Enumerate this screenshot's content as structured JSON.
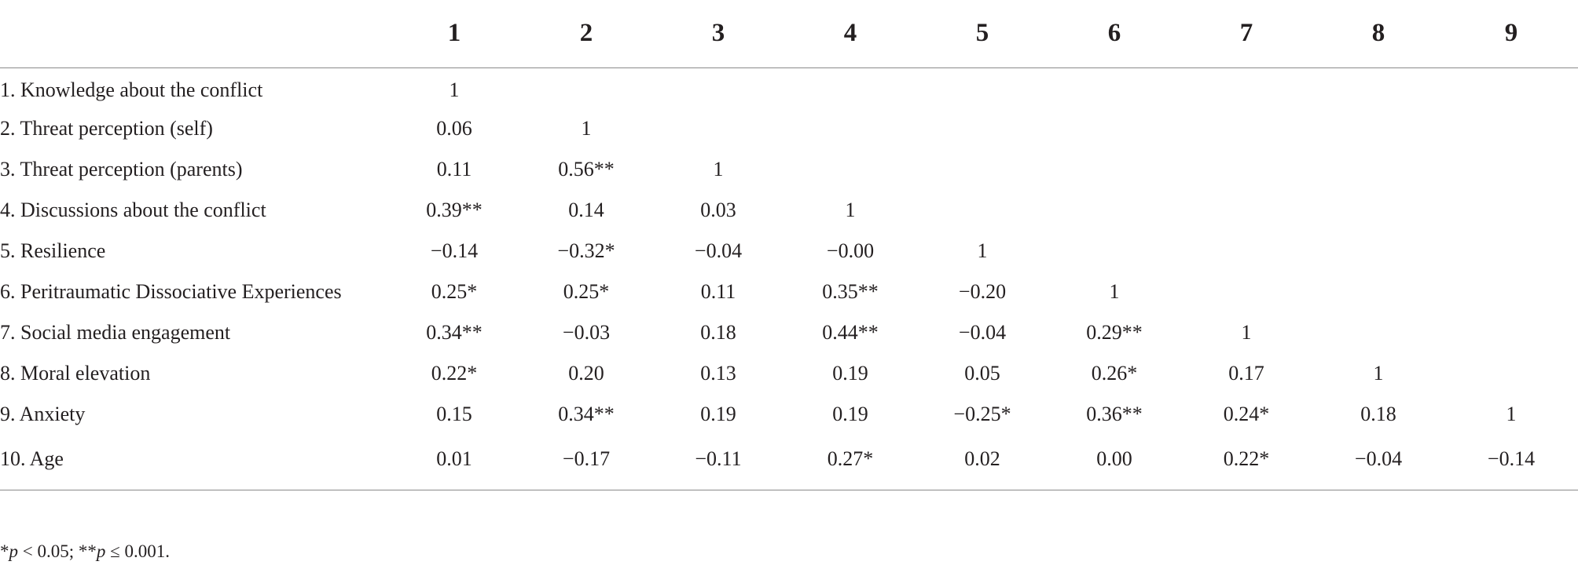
{
  "table": {
    "columns": [
      "1",
      "2",
      "3",
      "4",
      "5",
      "6",
      "7",
      "8",
      "9"
    ],
    "rows": [
      {
        "label": "1. Knowledge about the conflict",
        "values": [
          "1",
          "",
          "",
          "",
          "",
          "",
          "",
          "",
          ""
        ]
      },
      {
        "label": "2. Threat perception (self)",
        "values": [
          "0.06",
          "1",
          "",
          "",
          "",
          "",
          "",
          "",
          ""
        ]
      },
      {
        "label": "3. Threat perception (parents)",
        "values": [
          "0.11",
          "0.56**",
          "1",
          "",
          "",
          "",
          "",
          "",
          ""
        ]
      },
      {
        "label": "4. Discussions about the conflict",
        "values": [
          "0.39**",
          "0.14",
          "0.03",
          "1",
          "",
          "",
          "",
          "",
          ""
        ]
      },
      {
        "label": "5. Resilience",
        "values": [
          "−0.14",
          "−0.32*",
          "−0.04",
          "−0.00",
          "1",
          "",
          "",
          "",
          ""
        ]
      },
      {
        "label": "6. Peritraumatic Dissociative Experiences",
        "values": [
          "0.25*",
          "0.25*",
          "0.11",
          "0.35**",
          "−0.20",
          "1",
          "",
          "",
          ""
        ]
      },
      {
        "label": "7. Social media engagement",
        "values": [
          "0.34**",
          "−0.03",
          "0.18",
          "0.44**",
          "−0.04",
          "0.29**",
          "1",
          "",
          ""
        ]
      },
      {
        "label": "8. Moral elevation",
        "values": [
          "0.22*",
          "0.20",
          "0.13",
          "0.19",
          "0.05",
          "0.26*",
          "0.17",
          "1",
          ""
        ]
      },
      {
        "label": "9. Anxiety",
        "values": [
          "0.15",
          "0.34**",
          "0.19",
          "0.19",
          "−0.25*",
          "0.36**",
          "0.24*",
          "0.18",
          "1"
        ]
      },
      {
        "label": "10. Age",
        "values": [
          "0.01",
          "−0.17",
          "−0.11",
          "0.27*",
          "0.02",
          "0.00",
          "0.22*",
          "−0.04",
          "−0.14"
        ]
      }
    ]
  },
  "footnote": {
    "part1_sym": "*",
    "part1_p": "p",
    "part1_rest": " < 0.05; ",
    "part2_sym": "**",
    "part2_p": "p",
    "part2_rest": " ≤ 0.001."
  }
}
